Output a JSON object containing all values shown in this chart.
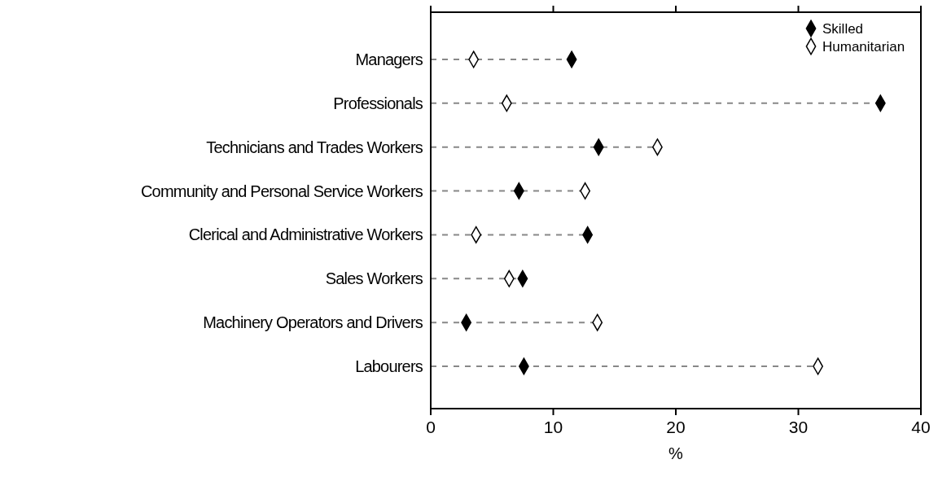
{
  "chart_data": {
    "type": "scatter",
    "orientation": "horizontal",
    "xlabel": "%",
    "categories": [
      "Managers",
      "Professionals",
      "Technicians and Trades Workers",
      "Community and Personal Service Workers",
      "Clerical and Administrative Workers",
      "Sales Workers",
      "Machinery Operators and Drivers",
      "Labourers"
    ],
    "series": [
      {
        "name": "Skilled",
        "color": "#000000",
        "values": [
          11.5,
          36.7,
          13.7,
          7.2,
          12.8,
          7.5,
          2.9,
          7.6
        ]
      },
      {
        "name": "Humanitarian",
        "color": "#ffffff",
        "values": [
          3.5,
          6.2,
          18.5,
          12.6,
          3.7,
          6.4,
          13.6,
          31.6
        ]
      }
    ],
    "xlim": [
      0,
      40
    ],
    "xticks": [
      0,
      10,
      20,
      30,
      40
    ],
    "grid": "y",
    "legend": "top right",
    "marker": "diamond"
  }
}
